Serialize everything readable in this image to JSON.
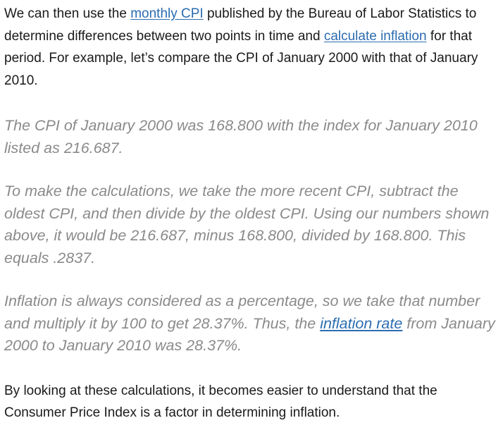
{
  "paragraphs": {
    "p1": {
      "before_link1": "We can then use the ",
      "link1": "monthly CPI",
      "between_links": " published by the Bureau of Labor Statistics to determine differences between two points in time and ",
      "link2": "calculate inflation",
      "after_link2": " for that period. For example, let’s compare the CPI of January 2000 with that of January 2010."
    },
    "p2": {
      "text": "The CPI of January 2000 was 168.800 with the index for January 2010 listed as 216.687."
    },
    "p3": {
      "text": "To make the calculations, we take the more recent CPI, subtract the oldest CPI, and then divide by the oldest CPI. Using our numbers shown above, it would be 216.687, minus 168.800, divided by 168.800. This equals .2837."
    },
    "p4": {
      "before_link": "Inflation is always considered as a percentage, so we take that number and multiply it by 100 to get 28.37%. Thus, the ",
      "link": "inflation rate",
      "after_link": " from January 2000 to January 2010 was 28.37%."
    },
    "p5": {
      "text": "By looking at these calculations, it becomes easier to understand that the Consumer Price Index is a factor in determining inflation."
    }
  },
  "colors": {
    "body_text": "#1a1a1a",
    "quote_text": "#8a8a8a",
    "link": "#2b6cb0"
  }
}
